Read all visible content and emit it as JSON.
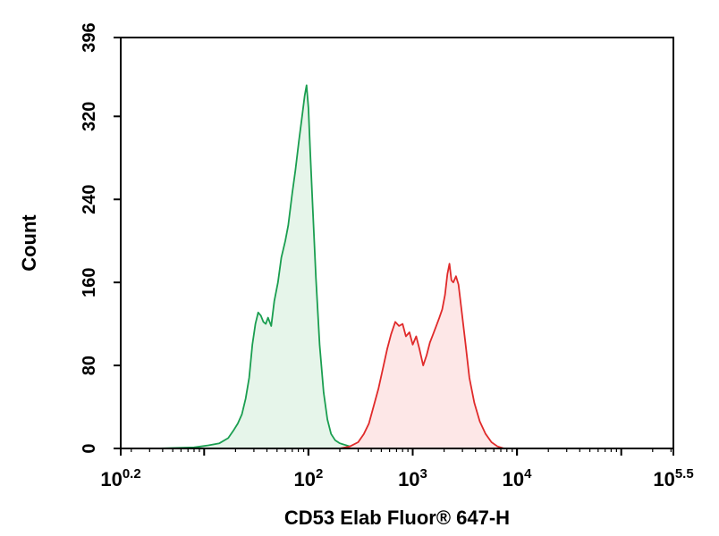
{
  "chart_data": {
    "type": "area",
    "title": "",
    "xlabel": "CD53 Elab Fluor® 647-H",
    "ylabel": "Count",
    "x_scale": "log",
    "xlim": [
      1.5849,
      316228
    ],
    "ylim": [
      0,
      396
    ],
    "grid": false,
    "x_ticks": [
      {
        "value": 1.5849,
        "base": "10",
        "exp": "0.2"
      },
      {
        "value": 100,
        "base": "10",
        "exp": "2"
      },
      {
        "value": 1000,
        "base": "10",
        "exp": "3"
      },
      {
        "value": 10000,
        "base": "10",
        "exp": "4"
      },
      {
        "value": 316228,
        "base": "10",
        "exp": "5.5"
      }
    ],
    "y_ticks": [
      {
        "value": 0,
        "label": "0"
      },
      {
        "value": 80,
        "label": "80"
      },
      {
        "value": 160,
        "label": "160"
      },
      {
        "value": 240,
        "label": "240"
      },
      {
        "value": 320,
        "label": "320"
      },
      {
        "value": 396,
        "label": "396"
      }
    ],
    "series": [
      {
        "color": "#1a9e50",
        "fill": "#e6f5ea",
        "points": [
          [
            1.6,
            0
          ],
          [
            3.5,
            0
          ],
          [
            8,
            1
          ],
          [
            11,
            3
          ],
          [
            14,
            5
          ],
          [
            17,
            10
          ],
          [
            19,
            17
          ],
          [
            21,
            24
          ],
          [
            23,
            33
          ],
          [
            25,
            48
          ],
          [
            27,
            68
          ],
          [
            29,
            100
          ],
          [
            31,
            120
          ],
          [
            33,
            131
          ],
          [
            35,
            128
          ],
          [
            37,
            122
          ],
          [
            39,
            120
          ],
          [
            41,
            126
          ],
          [
            44,
            118
          ],
          [
            47,
            142
          ],
          [
            51,
            160
          ],
          [
            55,
            184
          ],
          [
            60,
            200
          ],
          [
            64,
            215
          ],
          [
            70,
            246
          ],
          [
            75,
            268
          ],
          [
            81,
            296
          ],
          [
            87,
            320
          ],
          [
            92,
            340
          ],
          [
            96,
            350
          ],
          [
            100,
            328
          ],
          [
            104,
            286
          ],
          [
            110,
            232
          ],
          [
            118,
            164
          ],
          [
            128,
            100
          ],
          [
            140,
            54
          ],
          [
            152,
            28
          ],
          [
            165,
            14
          ],
          [
            180,
            8
          ],
          [
            200,
            5
          ],
          [
            250,
            2
          ],
          [
            320,
            1
          ],
          [
            500,
            0
          ],
          [
            2000,
            0
          ]
        ]
      },
      {
        "color": "#e02a2a",
        "fill": "#fde7e7",
        "points": [
          [
            160,
            0
          ],
          [
            200,
            0
          ],
          [
            250,
            2
          ],
          [
            300,
            6
          ],
          [
            340,
            14
          ],
          [
            380,
            24
          ],
          [
            420,
            40
          ],
          [
            470,
            58
          ],
          [
            520,
            78
          ],
          [
            570,
            96
          ],
          [
            620,
            110
          ],
          [
            680,
            122
          ],
          [
            740,
            118
          ],
          [
            800,
            120
          ],
          [
            860,
            108
          ],
          [
            930,
            112
          ],
          [
            1000,
            100
          ],
          [
            1080,
            108
          ],
          [
            1160,
            96
          ],
          [
            1260,
            80
          ],
          [
            1360,
            90
          ],
          [
            1460,
            102
          ],
          [
            1570,
            110
          ],
          [
            1680,
            118
          ],
          [
            1800,
            126
          ],
          [
            1920,
            134
          ],
          [
            2040,
            148
          ],
          [
            2150,
            168
          ],
          [
            2250,
            178
          ],
          [
            2350,
            162
          ],
          [
            2450,
            160
          ],
          [
            2600,
            166
          ],
          [
            2750,
            158
          ],
          [
            2950,
            132
          ],
          [
            3200,
            102
          ],
          [
            3500,
            68
          ],
          [
            3900,
            44
          ],
          [
            4400,
            26
          ],
          [
            5000,
            14
          ],
          [
            5700,
            6
          ],
          [
            6500,
            2
          ],
          [
            7500,
            0
          ],
          [
            10000,
            0
          ]
        ]
      }
    ]
  }
}
